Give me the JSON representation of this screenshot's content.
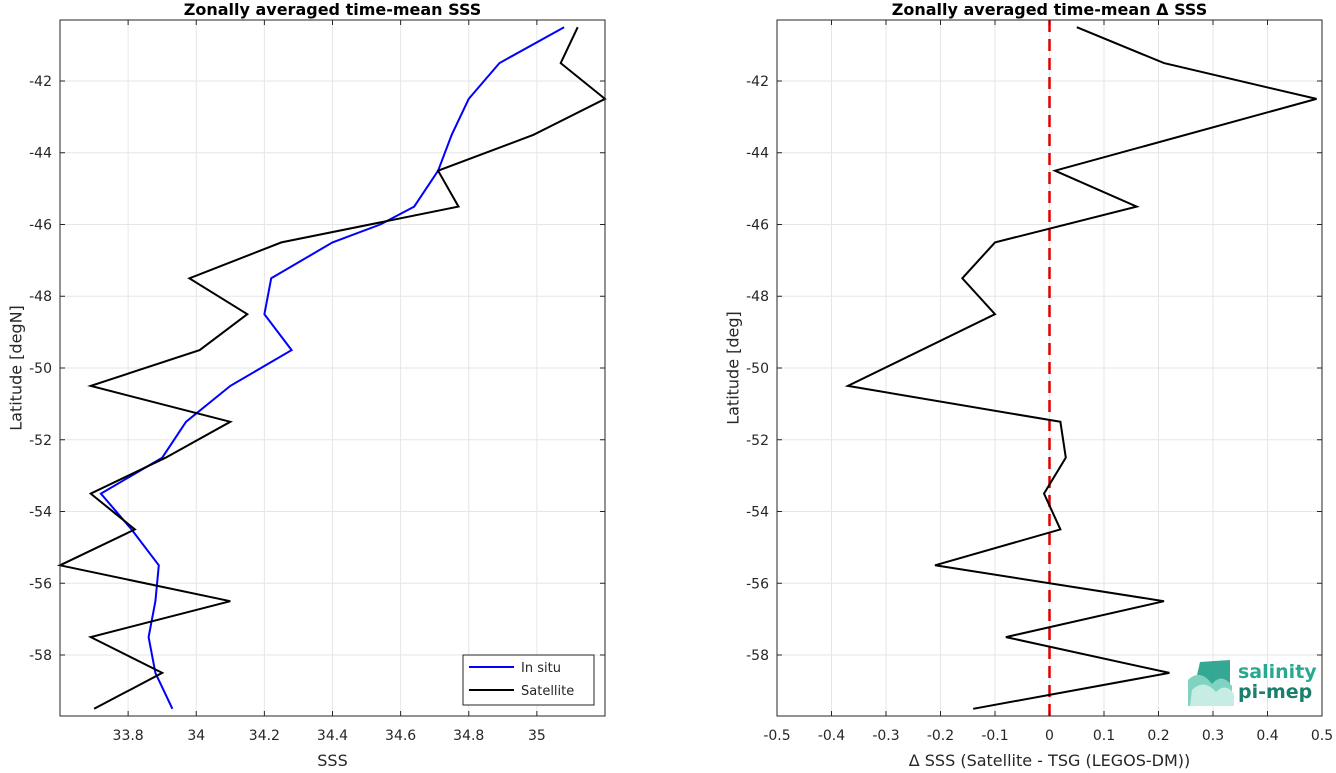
{
  "chart_data": [
    {
      "type": "line",
      "title": "Zonally averaged time-mean SSS",
      "xlabel": "SSS",
      "ylabel": "Latitude [degN]",
      "xlim": [
        33.6,
        35.2
      ],
      "ylim": [
        -59.7,
        -40.3
      ],
      "xticks": [
        33.8,
        34,
        34.2,
        34.4,
        34.6,
        34.8,
        35
      ],
      "xtick_labels": [
        "33.8",
        "34",
        "34.2",
        "34.4",
        "34.6",
        "34.8",
        "35"
      ],
      "yticks": [
        -58,
        -56,
        -54,
        -52,
        -50,
        -48,
        -46,
        -44,
        -42
      ],
      "ytick_labels": [
        "-58",
        "-56",
        "-54",
        "-52",
        "-50",
        "-48",
        "-46",
        "-44",
        "-42"
      ],
      "grid": true,
      "legend": "bottom-right",
      "series": [
        {
          "name": "In situ",
          "color": "#0000ff",
          "points": [
            [
              35.08,
              -40.5
            ],
            [
              34.89,
              -41.5
            ],
            [
              34.8,
              -42.5
            ],
            [
              34.75,
              -43.5
            ],
            [
              34.71,
              -44.5
            ],
            [
              34.64,
              -45.5
            ],
            [
              34.54,
              -46.0
            ],
            [
              34.4,
              -46.5
            ],
            [
              34.22,
              -47.5
            ],
            [
              34.2,
              -48.5
            ],
            [
              34.28,
              -49.5
            ],
            [
              34.1,
              -50.5
            ],
            [
              33.97,
              -51.5
            ],
            [
              33.9,
              -52.5
            ],
            [
              33.72,
              -53.5
            ],
            [
              33.81,
              -54.5
            ],
            [
              33.89,
              -55.5
            ],
            [
              33.88,
              -56.5
            ],
            [
              33.86,
              -57.5
            ],
            [
              33.88,
              -58.5
            ],
            [
              33.93,
              -59.5
            ]
          ]
        },
        {
          "name": "Satellite",
          "color": "#000000",
          "points": [
            [
              35.12,
              -40.5
            ],
            [
              35.07,
              -41.5
            ],
            [
              35.2,
              -42.5
            ],
            [
              34.99,
              -43.5
            ],
            [
              34.71,
              -44.5
            ],
            [
              34.77,
              -45.5
            ],
            [
              34.25,
              -46.5
            ],
            [
              33.98,
              -47.5
            ],
            [
              34.15,
              -48.5
            ],
            [
              34.01,
              -49.5
            ],
            [
              33.69,
              -50.5
            ],
            [
              34.1,
              -51.5
            ],
            [
              33.91,
              -52.5
            ],
            [
              33.69,
              -53.5
            ],
            [
              33.82,
              -54.5
            ],
            [
              33.6,
              -55.5
            ],
            [
              34.1,
              -56.5
            ],
            [
              33.69,
              -57.5
            ],
            [
              33.9,
              -58.5
            ],
            [
              33.7,
              -59.5
            ]
          ]
        }
      ]
    },
    {
      "type": "line",
      "title": "Zonally averaged time-mean Δ SSS",
      "xlabel": "Δ SSS (Satellite - TSG (LEGOS-DM))",
      "ylabel": "Latitude [deg]",
      "xlim": [
        -0.5,
        0.5
      ],
      "ylim": [
        -59.7,
        -40.3
      ],
      "xticks": [
        -0.5,
        -0.4,
        -0.3,
        -0.2,
        -0.1,
        0,
        0.1,
        0.2,
        0.3,
        0.4,
        0.5
      ],
      "xtick_labels": [
        "-0.5",
        "-0.4",
        "-0.3",
        "-0.2",
        "-0.1",
        "0",
        "0.1",
        "0.2",
        "0.3",
        "0.4",
        "0.5"
      ],
      "yticks": [
        -58,
        -56,
        -54,
        -52,
        -50,
        -48,
        -46,
        -44,
        -42
      ],
      "ytick_labels": [
        "-58",
        "-56",
        "-54",
        "-52",
        "-50",
        "-48",
        "-46",
        "-44",
        "-42"
      ],
      "grid": true,
      "reference_line": {
        "x": 0,
        "color": "#e00000",
        "style": "dashed"
      },
      "series": [
        {
          "color": "#000000",
          "points": [
            [
              0.05,
              -40.5
            ],
            [
              0.21,
              -41.5
            ],
            [
              0.49,
              -42.5
            ],
            [
              0.01,
              -44.5
            ],
            [
              0.16,
              -45.5
            ],
            [
              -0.1,
              -46.5
            ],
            [
              -0.16,
              -47.5
            ],
            [
              -0.1,
              -48.5
            ],
            [
              -0.37,
              -50.5
            ],
            [
              0.02,
              -51.5
            ],
            [
              0.03,
              -52.5
            ],
            [
              -0.01,
              -53.5
            ],
            [
              0.02,
              -54.5
            ],
            [
              -0.21,
              -55.5
            ],
            [
              0.21,
              -56.5
            ],
            [
              -0.08,
              -57.5
            ],
            [
              0.22,
              -58.5
            ],
            [
              -0.14,
              -59.5
            ]
          ]
        }
      ]
    }
  ],
  "logo": {
    "line1": "salinity",
    "line2": "pi-mep",
    "icon": "salinity-wave-logo-icon"
  }
}
